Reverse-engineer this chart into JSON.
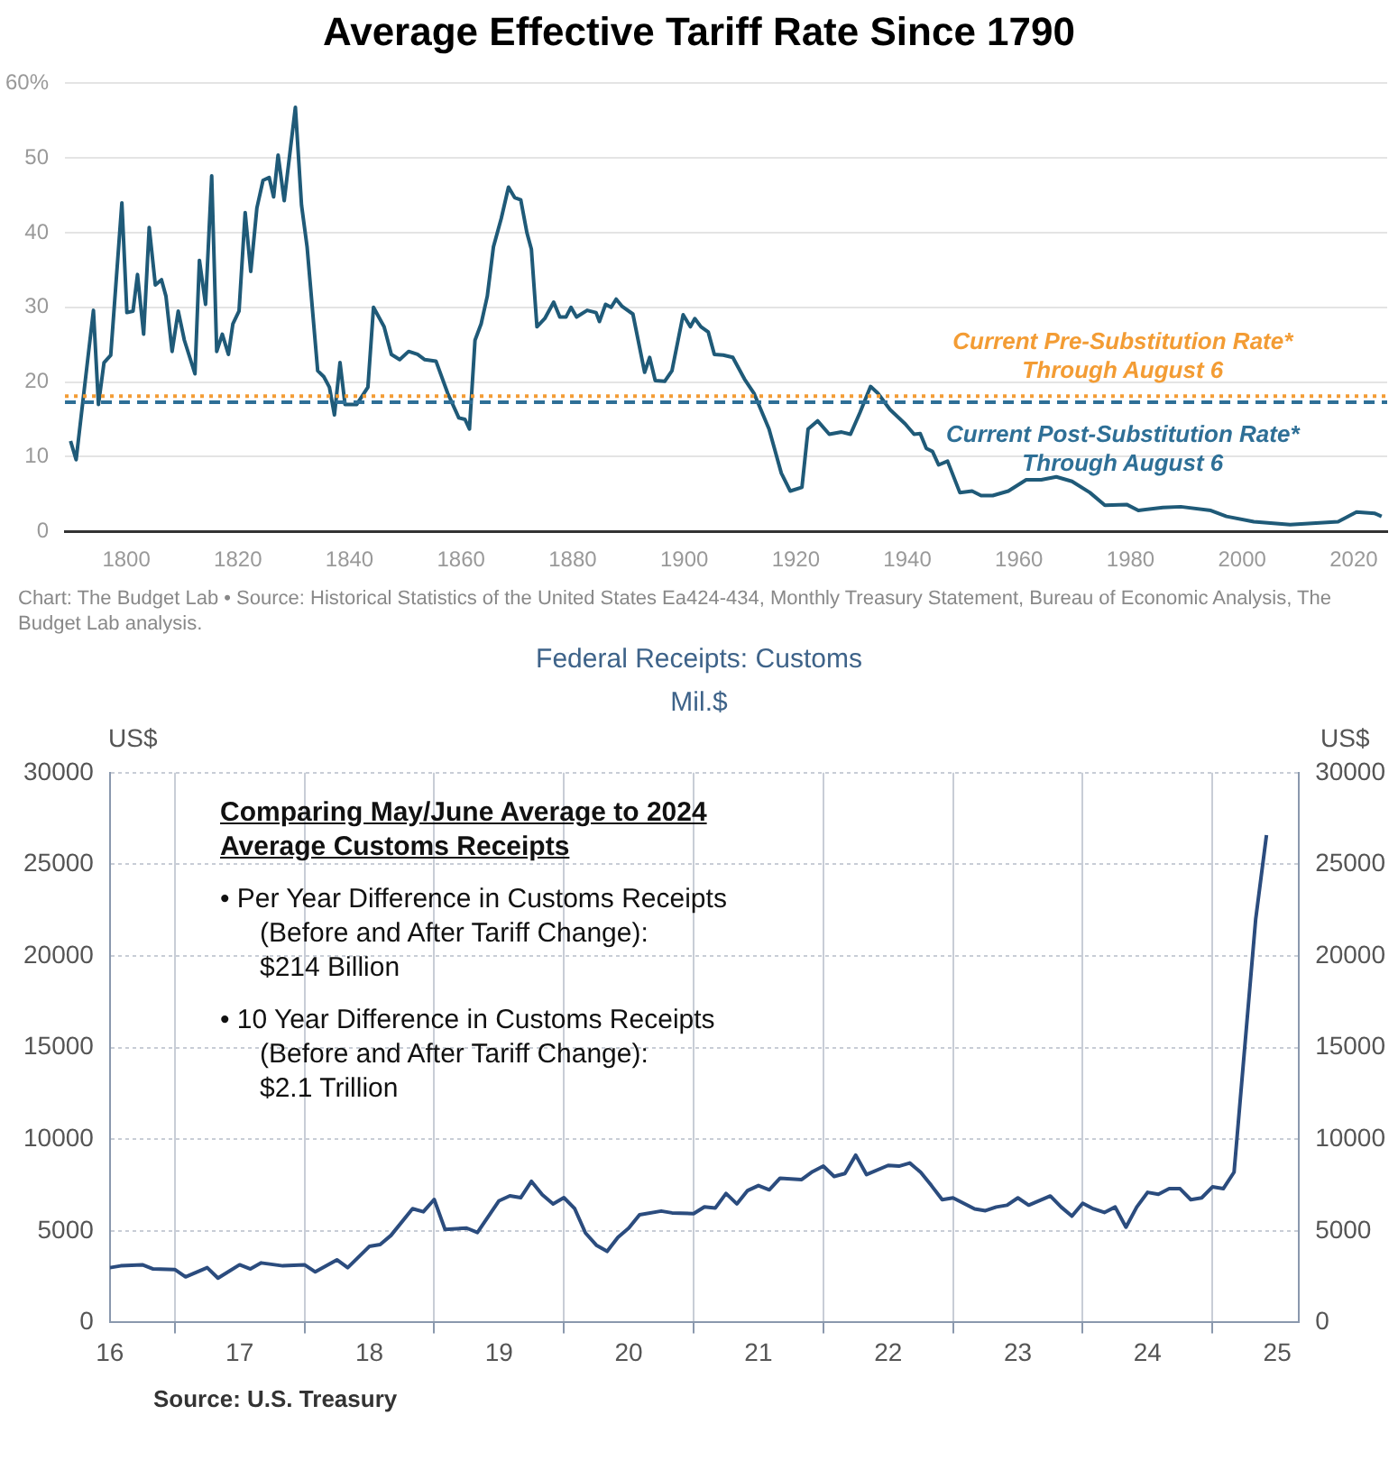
{
  "chart_data": [
    {
      "type": "line",
      "title": "Average Effective Tariff Rate Since 1790",
      "x": [
        1790,
        1791,
        1794.1,
        1795,
        1796,
        1797.2,
        1799.2,
        1800.1,
        1801.2,
        1802,
        1803.1,
        1804.1,
        1805.2,
        1806.3,
        1807.1,
        1808.2,
        1809.3,
        1810.4,
        1812.3,
        1813.1,
        1814.2,
        1815.3,
        1816.2,
        1817.2,
        1818.3,
        1819.1,
        1820.2,
        1821.3,
        1822.3,
        1823.4,
        1824.5,
        1825.6,
        1826.4,
        1827.2,
        1828.3,
        1830.3,
        1831.4,
        1832.4,
        1834.3,
        1835.4,
        1836.4,
        1837.3,
        1838.3,
        1839.2,
        1841.3,
        1843.3,
        1844.3,
        1846.2,
        1847.5,
        1849,
        1850.6,
        1852.2,
        1853.5,
        1855.5,
        1857.6,
        1859.6,
        1860.7,
        1861.5,
        1862.5,
        1863.6,
        1864.7,
        1865.8,
        1867.2,
        1868.5,
        1869.6,
        1870.7,
        1871.8,
        1872.6,
        1873.6,
        1875,
        1876.6,
        1877.7,
        1878.8,
        1879.7,
        1880.7,
        1882.6,
        1884.2,
        1884.8,
        1885.9,
        1886.9,
        1887.8,
        1888.9,
        1890.8,
        1892.9,
        1893.8,
        1894.8,
        1896.5,
        1897.8,
        1899.8,
        1901.1,
        1901.9,
        1903,
        1904.3,
        1905.4,
        1907,
        1908.7,
        1910.8,
        1912.5,
        1915.2,
        1917.4,
        1919,
        1921.1,
        1922.2,
        1923.9,
        1926,
        1928.2,
        1929.8,
        1931.5,
        1933.4,
        1934.7,
        1936.9,
        1939.6,
        1941.2,
        1942.3,
        1943.4,
        1944.5,
        1945.6,
        1947.2,
        1949.4,
        1951.6,
        1953.2,
        1955.3,
        1958.1,
        1961.3,
        1964,
        1966.7,
        1969.5,
        1972.7,
        1975.4,
        1979.3,
        1981.4,
        1985.8,
        1989,
        1994.4,
        1997.2,
        2002.1,
        2008.6,
        2017.2,
        2020.5,
        2023.8,
        2025
      ],
      "series": [
        {
          "color": "#1f5a78",
          "values": [
            12.1,
            9.6,
            29.6,
            17,
            22.6,
            23.6,
            44,
            29.3,
            29.5,
            34.4,
            26.4,
            40.7,
            33,
            33.7,
            31.5,
            24.1,
            29.5,
            25.6,
            21.1,
            36.3,
            30.4,
            47.6,
            24.1,
            26.4,
            23.7,
            27.8,
            29.5,
            42.7,
            34.8,
            43.3,
            47,
            47.4,
            44.8,
            50.4,
            44.3,
            56.8,
            43.7,
            38.1,
            21.5,
            20.7,
            19.3,
            15.6,
            22.6,
            17,
            17,
            19.3,
            30,
            27.4,
            23.7,
            23,
            24.1,
            23.7,
            23,
            22.8,
            18.5,
            15.2,
            15,
            13.7,
            25.6,
            27.8,
            31.5,
            38.1,
            41.9,
            46.1,
            44.7,
            44.4,
            40,
            37.8,
            27.4,
            28.5,
            30.7,
            28.7,
            28.7,
            30,
            28.7,
            29.6,
            29.3,
            28.1,
            30.4,
            30,
            31.1,
            30.1,
            29.1,
            21.3,
            23.3,
            20.2,
            20.1,
            21.5,
            29,
            27.4,
            28.5,
            27.4,
            26.7,
            23.7,
            23.6,
            23.3,
            20.4,
            18.5,
            13.7,
            7.8,
            5.4,
            5.9,
            13.7,
            14.8,
            13,
            13.3,
            13,
            15.9,
            19.4,
            18.5,
            16.3,
            14.4,
            13,
            13.1,
            11.1,
            10.7,
            8.9,
            9.4,
            5.2,
            5.4,
            4.8,
            4.8,
            5.4,
            6.9,
            6.9,
            7.3,
            6.7,
            5.2,
            3.5,
            3.6,
            2.8,
            3.2,
            3.3,
            2.8,
            2,
            1.3,
            0.9,
            1.3,
            2.6,
            2.4,
            2
          ]
        }
      ],
      "xlim": [
        1789,
        2026
      ],
      "xticks": [
        1800,
        1820,
        1840,
        1860,
        1880,
        1900,
        1920,
        1940,
        1960,
        1980,
        2000,
        2020
      ],
      "ylim": [
        0,
        60
      ],
      "yticks": [
        0,
        10,
        20,
        30,
        40,
        50,
        {
          "value": 60,
          "label": "60%"
        }
      ],
      "grid": "y",
      "ref_lines": [
        {
          "axis": "y",
          "value": 18.1,
          "label": "Current Pre-Substitution Rate*\nThrough August 6",
          "color": "#f39c34",
          "line_style": "dotted"
        },
        {
          "axis": "y",
          "value": 17.3,
          "label": "Current Post-Substitution Rate*\nThrough August 6",
          "color": "#2e6f96",
          "line_style": "dashed"
        }
      ],
      "annotations": [
        "Chart: The Budget Lab • Source: Historical Statistics of the United States Ea424-434, Monthly Treasury Statement, Bureau of Economic Analysis, The Budget Lab analysis."
      ]
    },
    {
      "type": "line",
      "title": "Federal Receipts: Customs",
      "subtitle": "Mil.$",
      "ylabel": "US$",
      "y2label": "US$",
      "x": [
        "2016-07",
        "2016-08",
        "2016-10",
        "2016-11",
        "2017-01",
        "2017-02",
        "2017-04",
        "2017-05",
        "2017-07",
        "2017-08",
        "2017-09",
        "2017-11",
        "2018-01",
        "2018-02",
        "2018-04",
        "2018-05",
        "2018-07",
        "2018-08",
        "2018-09",
        "2018-11",
        "2018-12",
        "2019-01",
        "2019-02",
        "2019-04",
        "2019-05",
        "2019-07",
        "2019-08",
        "2019-09",
        "2019-10",
        "2019-11",
        "2019-12",
        "2020-01",
        "2020-02",
        "2020-03",
        "2020-04",
        "2020-05",
        "2020-06",
        "2020-07",
        "2020-08",
        "2020-10",
        "2020-11",
        "2021-01",
        "2021-02",
        "2021-03",
        "2021-04",
        "2021-05",
        "2021-06",
        "2021-07",
        "2021-08",
        "2021-09",
        "2021-11",
        "2021-12",
        "2022-01",
        "2022-02",
        "2022-03",
        "2022-04",
        "2022-05",
        "2022-07",
        "2022-08",
        "2022-09",
        "2022-10",
        "2022-11",
        "2022-12",
        "2023-01",
        "2023-03",
        "2023-04",
        "2023-05",
        "2023-06",
        "2023-07",
        "2023-08",
        "2023-10",
        "2023-11",
        "2023-12",
        "2024-01",
        "2024-02",
        "2024-03",
        "2024-04",
        "2024-05",
        "2024-06",
        "2024-07",
        "2024-08",
        "2024-09",
        "2024-10",
        "2024-11",
        "2024-12",
        "2025-01",
        "2025-02",
        "2025-03",
        "2025-05",
        "2025-06"
      ],
      "series": [
        {
          "color": "#2b4c7e",
          "values": [
            2990,
            3090,
            3150,
            2920,
            2890,
            2490,
            2990,
            2420,
            3150,
            2920,
            3250,
            3090,
            3150,
            2760,
            3420,
            2990,
            4150,
            4250,
            4750,
            6210,
            6040,
            6710,
            5080,
            5150,
            4910,
            6640,
            6910,
            6810,
            7700,
            6970,
            6470,
            6810,
            6210,
            4880,
            4220,
            3880,
            4650,
            5150,
            5880,
            6080,
            5980,
            5940,
            6310,
            6240,
            7040,
            6470,
            7200,
            7470,
            7240,
            7870,
            7800,
            8230,
            8530,
            7970,
            8130,
            9130,
            8070,
            8570,
            8530,
            8700,
            8200,
            7470,
            6700,
            6800,
            6200,
            6100,
            6300,
            6400,
            6800,
            6400,
            6900,
            6300,
            5800,
            6500,
            6200,
            6000,
            6300,
            5200,
            6300,
            7100,
            7000,
            7300,
            7300,
            6700,
            6800,
            7400,
            7300,
            8200,
            22000,
            26600
          ]
        }
      ],
      "xlim": [
        "2016-07",
        "2025-09"
      ],
      "xticks": [
        {
          "value": "2016-07",
          "label": "16"
        },
        {
          "value": "2017-01",
          "label": null
        },
        {
          "value": "2017-07",
          "label": "17"
        },
        {
          "value": "2018-01",
          "label": null
        },
        {
          "value": "2018-07",
          "label": "18"
        },
        {
          "value": "2019-01",
          "label": null
        },
        {
          "value": "2019-07",
          "label": "19"
        },
        {
          "value": "2020-01",
          "label": null
        },
        {
          "value": "2020-07",
          "label": "20"
        },
        {
          "value": "2021-01",
          "label": null
        },
        {
          "value": "2021-07",
          "label": "21"
        },
        {
          "value": "2022-01",
          "label": null
        },
        {
          "value": "2022-07",
          "label": "22"
        },
        {
          "value": "2023-01",
          "label": null
        },
        {
          "value": "2023-07",
          "label": "23"
        },
        {
          "value": "2024-01",
          "label": null
        },
        {
          "value": "2024-07",
          "label": "24"
        },
        {
          "value": "2025-01",
          "label": null
        },
        {
          "value": "2025-07",
          "label": "25"
        }
      ],
      "ylim": [
        0,
        30000
      ],
      "yticks": [
        0,
        5000,
        10000,
        15000,
        20000,
        25000,
        30000
      ],
      "y2lim": [
        0,
        30000
      ],
      "y2ticks": [
        0,
        5000,
        10000,
        15000,
        20000,
        25000,
        30000
      ],
      "grid": true,
      "annotations": [
        "Comparing May/June Average to 2024\nAverage Customs Receipts",
        "•\tPer Year Difference in Customs Receipts\n(Before and After Tariff Change):\n$214 Billion",
        "•\t10 Year Difference in Customs Receipts\n(Before and After Tariff Change):\n$2.1 Trillion",
        "Source:  U.S. Treasury"
      ]
    }
  ]
}
